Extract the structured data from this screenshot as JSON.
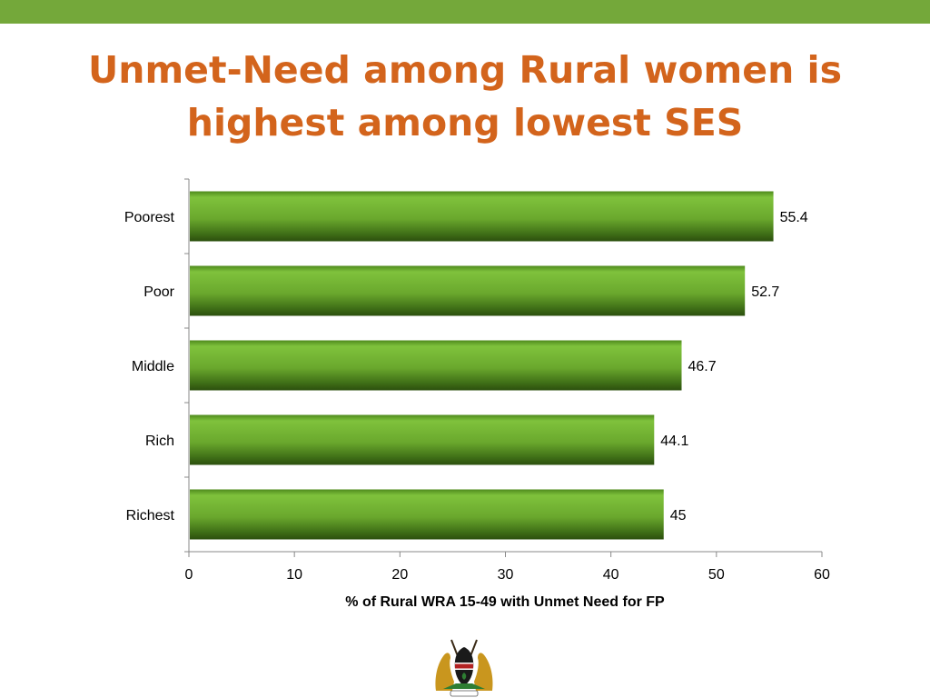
{
  "slide": {
    "title_line1": "Unmet-Need among Rural women is",
    "title_line2": "highest among lowest SES",
    "accent_color": "#74a83a",
    "title_color": "#d3641c",
    "emblem_icon": "kenya-coat-of-arms"
  },
  "chart_data": {
    "type": "bar",
    "orientation": "horizontal",
    "categories": [
      "Poorest",
      "Poor",
      "Middle",
      "Rich",
      "Richest"
    ],
    "values": [
      55.4,
      52.7,
      46.7,
      44.1,
      45
    ],
    "data_labels": [
      "55.4",
      "52.7",
      "46.7",
      "44.1",
      "45"
    ],
    "xlabel": "% of Rural WRA 15-49 with Unmet Need for FP",
    "ylabel": "",
    "xlim": [
      0,
      60
    ],
    "xticks": [
      0,
      10,
      20,
      30,
      40,
      50,
      60
    ],
    "grid": false,
    "legend": "none",
    "bar_color": "#6fae2e"
  }
}
